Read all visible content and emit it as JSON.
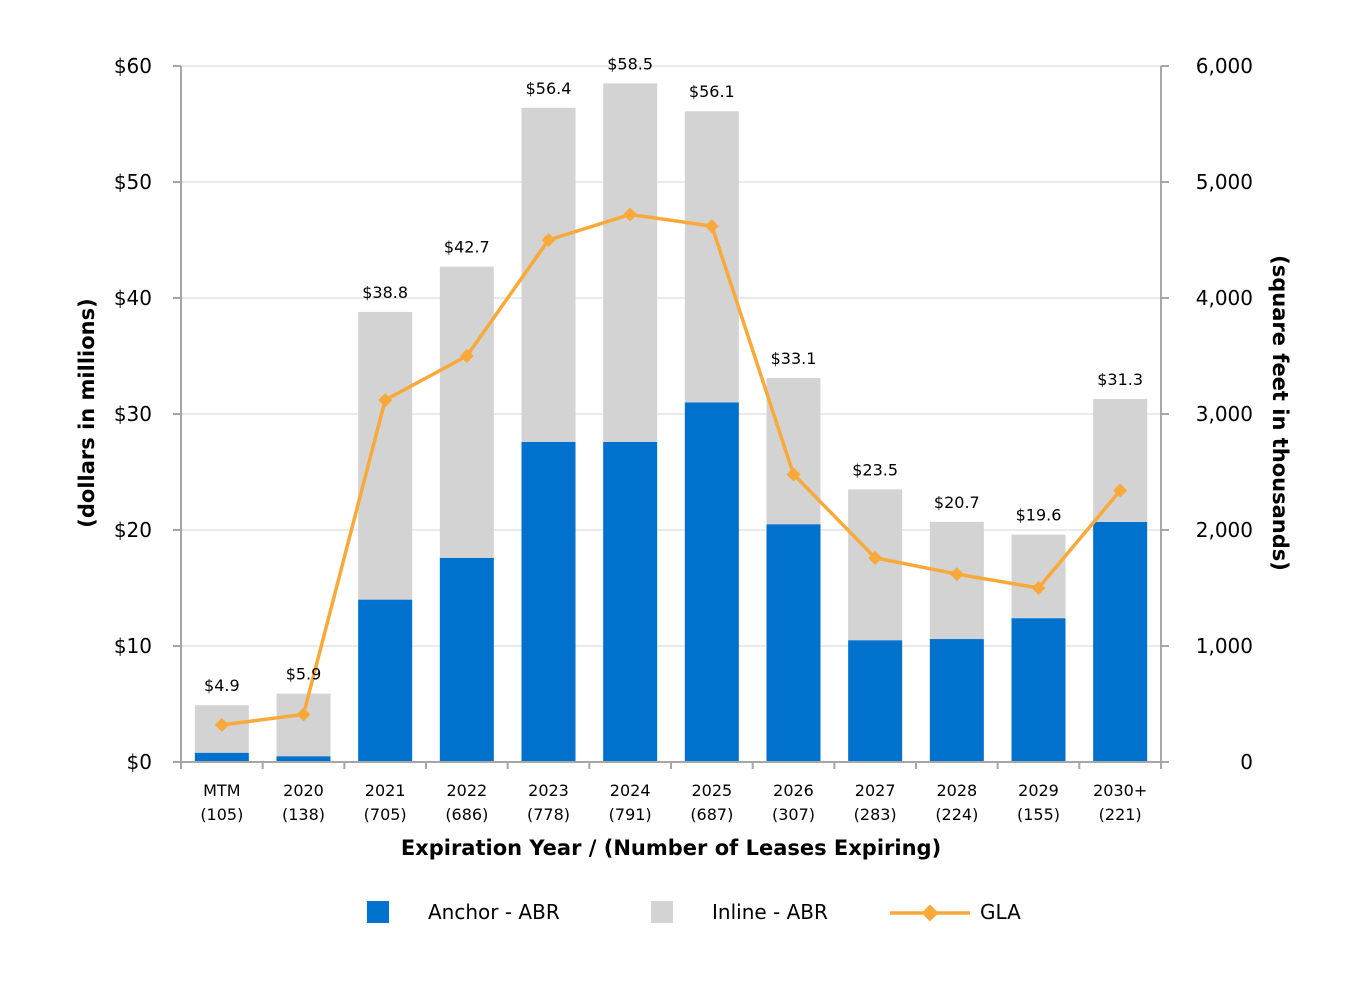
{
  "chart_data": {
    "type": "bar",
    "stacked": true,
    "categories": [
      "MTM",
      "2020",
      "2021",
      "2022",
      "2023",
      "2024",
      "2025",
      "2026",
      "2027",
      "2028",
      "2029",
      "2030+"
    ],
    "category_sublabels": [
      "(105)",
      "(138)",
      "(705)",
      "(686)",
      "(778)",
      "(791)",
      "(687)",
      "(307)",
      "(283)",
      "(224)",
      "(155)",
      "(221)"
    ],
    "series": [
      {
        "name": "Anchor - ABR",
        "kind": "bar",
        "axis": "left",
        "color": "#0072CE",
        "values": [
          0.8,
          0.5,
          14.0,
          17.6,
          27.6,
          27.6,
          31.0,
          20.5,
          10.5,
          10.6,
          12.4,
          20.7
        ]
      },
      {
        "name": "Inline - ABR",
        "kind": "bar",
        "axis": "left",
        "color": "#D3D3D3",
        "values": [
          4.1,
          5.4,
          24.8,
          25.1,
          28.8,
          30.9,
          25.1,
          12.6,
          13.0,
          10.1,
          7.2,
          10.6
        ]
      },
      {
        "name": "GLA",
        "kind": "line",
        "axis": "right",
        "color": "#F9A93A",
        "values": [
          320,
          410,
          3120,
          3500,
          4500,
          4720,
          4620,
          2480,
          1760,
          1620,
          1500,
          2340
        ]
      }
    ],
    "totals": [
      "$4.9",
      "$5.9",
      "$38.8",
      "$42.7",
      "$56.4",
      "$58.5",
      "$56.1",
      "$33.1",
      "$23.5",
      "$20.7",
      "$19.6",
      "$31.3"
    ],
    "xlabel": "Expiration Year / (Number of Leases Expiring)",
    "ylabel": "(dollars in millions)",
    "y2label": "(square feet in thousands)",
    "ylim": [
      0,
      60
    ],
    "y2lim": [
      0,
      6000
    ],
    "yticks": [
      "$0",
      "$10",
      "$20",
      "$30",
      "$40",
      "$50",
      "$60"
    ],
    "y2ticks": [
      "0",
      "1,000",
      "2,000",
      "3,000",
      "4,000",
      "5,000",
      "6,000"
    ],
    "grid": true,
    "legend_position": "bottom"
  }
}
